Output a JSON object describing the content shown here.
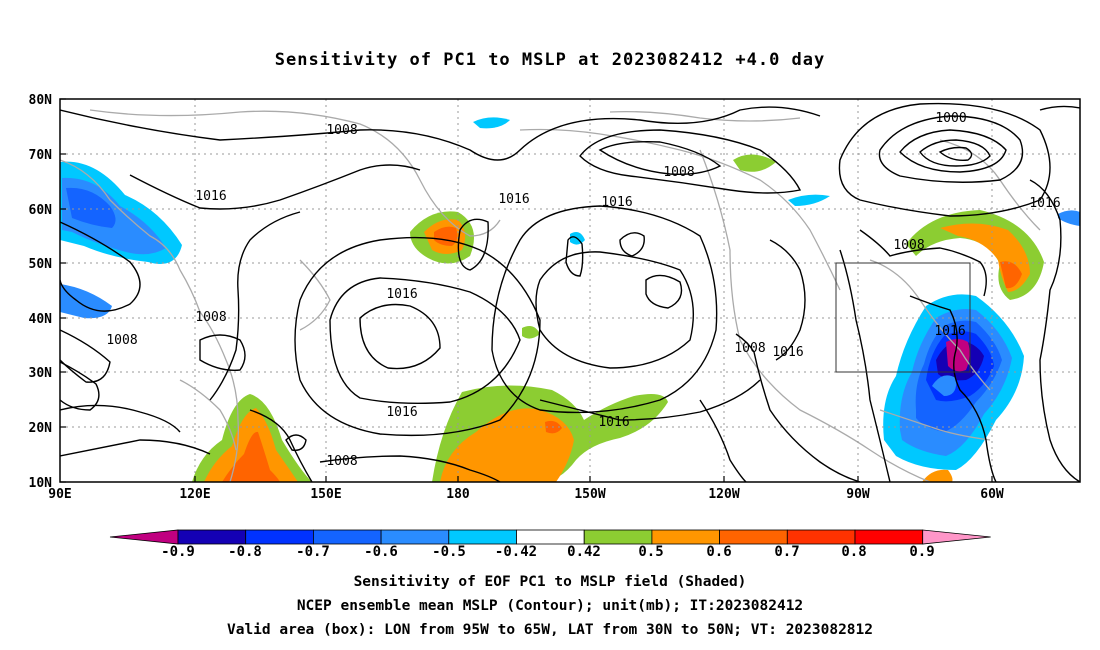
{
  "title": "Sensitivity of PC1 to MSLP at 2023082412 +4.0 day",
  "axes": {
    "lat_labels": [
      "80N",
      "70N",
      "60N",
      "50N",
      "40N",
      "30N",
      "20N",
      "10N"
    ],
    "lon_labels": [
      "90E",
      "120E",
      "150E",
      "180",
      "150W",
      "120W",
      "90W",
      "60W"
    ]
  },
  "contour_labels": [
    "1008",
    "1016",
    "1008",
    "1000",
    "1016",
    "1016",
    "1016",
    "1016",
    "1008",
    "1008",
    "1008",
    "1016",
    "1016",
    "1008",
    "1008",
    "1016",
    "1008",
    "1016"
  ],
  "colorbar": {
    "labels": [
      "-0.9",
      "-0.8",
      "-0.7",
      "-0.6",
      "-0.5",
      "-0.42",
      "0.42",
      "0.5",
      "0.6",
      "0.7",
      "0.8",
      "0.9"
    ],
    "colors": [
      "#c00080",
      "#1400b4",
      "#0032ff",
      "#1464ff",
      "#2a8cff",
      "#00c8ff",
      "#ffffff",
      "#8ccd32",
      "#ff9600",
      "#ff6400",
      "#ff3200",
      "#ff0000",
      "#ff96c8"
    ]
  },
  "footer": {
    "line1": "Sensitivity of EOF PC1 to MSLP field (Shaded)",
    "line2": "NCEP ensemble mean MSLP (Contour); unit(mb); IT:2023082412",
    "line3": "Valid area (box): LON from 95W to 65W, LAT from 30N to 50N; VT: 2023082812"
  }
}
